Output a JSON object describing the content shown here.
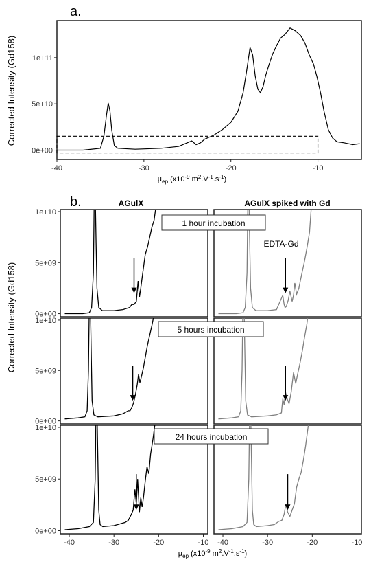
{
  "chart_data": [
    {
      "type": "line",
      "panel_label": "a.",
      "ylabel": "Corrected Intensity (Gd158)",
      "xlabel": {
        "main": "µ",
        "sub": "ep",
        "rest1": " (x10",
        "sup1": "-9",
        "rest2": " m",
        "sup2": "2",
        "rest3": ".V",
        "sup3": "-1",
        "rest4": ".s",
        "sup4": "-1",
        "rest5": ")"
      },
      "xlim": [
        -40,
        -5
      ],
      "ylim": [
        -10000000000.0,
        140000000000.0
      ],
      "xticks": [
        -40,
        -30,
        -20,
        -10
      ],
      "xtick_labels": [
        "-40",
        "-30",
        "-20",
        "-10"
      ],
      "yticks": [
        0,
        50000000000.0,
        100000000000.0
      ],
      "ytick_labels": [
        "0e+00",
        "5e+10",
        "1e+11"
      ],
      "series": [
        {
          "color": "#000000",
          "x": [
            -40,
            -37,
            -35,
            -34.6,
            -34.3,
            -34.1,
            -33.9,
            -33.7,
            -33.4,
            -33,
            -31,
            -28,
            -26,
            -24.5,
            -24,
            -23.5,
            -23,
            -22,
            -21,
            -20,
            -19.2,
            -18.6,
            -18.2,
            -17.8,
            -17.5,
            -17.2,
            -16.9,
            -16.6,
            -16.3,
            -16,
            -15.6,
            -15.2,
            -14.8,
            -14.3,
            -13.8,
            -13.2,
            -12.6,
            -12,
            -11.5,
            -11,
            -10.5,
            -10.1,
            -9.7,
            -9.3,
            -8.8,
            -8.3,
            -7.8,
            -7,
            -6,
            -5.2
          ],
          "y": [
            0,
            0,
            2000000000.0,
            15000000000.0,
            38000000000.0,
            51000000000.0,
            42000000000.0,
            22000000000.0,
            5000000000.0,
            2000000000.0,
            1000000000.0,
            2000000000.0,
            4000000000.0,
            10000000000.0,
            6000000000.0,
            8000000000.0,
            12000000000.0,
            16000000000.0,
            22000000000.0,
            30000000000.0,
            42000000000.0,
            62000000000.0,
            85000000000.0,
            111000000000.0,
            103000000000.0,
            80000000000.0,
            66000000000.0,
            62000000000.0,
            69000000000.0,
            81000000000.0,
            93000000000.0,
            104000000000.0,
            112000000000.0,
            121000000000.0,
            125000000000.0,
            132000000000.0,
            129000000000.0,
            124000000000.0,
            116000000000.0,
            103000000000.0,
            93000000000.0,
            79000000000.0,
            62000000000.0,
            42000000000.0,
            22000000000.0,
            13000000000.0,
            9000000000.0,
            8000000000.0,
            6000000000.0,
            7000000000.0
          ]
        }
      ],
      "roi_box": {
        "x": [
          -40,
          -10
        ],
        "y": [
          -3000000000.0,
          15000000000.0
        ]
      }
    },
    {
      "type": "line",
      "panel_label": "b.",
      "ylabel": "Corrected Intensity (Gd158)",
      "xlabel": {
        "main": "µ",
        "sub": "ep",
        "rest1": " (x10",
        "sup1": "-9",
        "rest2": " m",
        "sup2": "2",
        "rest3": ".V",
        "sup3": "-1",
        "rest4": ".s",
        "sup4": "-1",
        "rest5": ")"
      },
      "xlim": [
        -42,
        -9
      ],
      "ylim": [
        -300000000.0,
        10200000000.0
      ],
      "xticks": [
        -40,
        -30,
        -20,
        -10
      ],
      "xtick_labels": [
        "-40",
        "-30",
        "-20",
        "-10"
      ],
      "yticks": [
        0,
        5000000000.0,
        10000000000.0
      ],
      "ytick_labels": [
        "0e+00",
        "5e+09",
        "1e+10"
      ],
      "column_titles": [
        "AGulX",
        "AGulX spiked with Gd"
      ],
      "row_labels": [
        "1 hour incubation",
        "5 hours incubation",
        "24 hours incubation"
      ],
      "annotation_text": "EDTA-Gd",
      "colors": [
        "#000000",
        "#7f7f7f"
      ],
      "panels": [
        [
          {
            "peak_x": -34.2,
            "arrow_x": -25.5,
            "x": [
              -41,
              -37,
              -35.5,
              -35,
              -34.6,
              -34.4,
              -34.2,
              -34,
              -33.8,
              -33.4,
              -32.6,
              -30,
              -28,
              -26.5,
              -26,
              -25.5,
              -25,
              -24.6,
              -24.3,
              -24,
              -23.7,
              -23.3,
              -23,
              -22.5,
              -22,
              -21.5,
              -21,
              -20.6,
              -20.2
            ],
            "y": [
              0,
              0,
              100000000.0,
              600000000.0,
              4000000000.0,
              12000000000.0,
              12000000000.0,
              7000000000.0,
              2500000000.0,
              600000000.0,
              300000000.0,
              300000000.0,
              400000000.0,
              600000000.0,
              900000000.0,
              900000000.0,
              1200000000.0,
              3200000000.0,
              1600000000.0,
              2500000000.0,
              3500000000.0,
              4800000000.0,
              5800000000.0,
              6500000000.0,
              7500000000.0,
              8500000000.0,
              9200000000.0,
              10500000000.0,
              12000000000.0
            ]
          },
          {
            "peak_x": -34.2,
            "arrow_x": -26,
            "x": [
              -41,
              -37,
              -35.5,
              -35,
              -34.6,
              -34.4,
              -34.2,
              -34,
              -33.8,
              -33.4,
              -32.6,
              -30,
              -28,
              -26.6,
              -26.3,
              -26.1,
              -25.8,
              -25.4,
              -25,
              -24.5,
              -24.2,
              -23.9,
              -23.5,
              -23,
              -22.4,
              -21.8,
              -21.2,
              -20.6,
              -20.2
            ],
            "y": [
              0,
              0,
              100000000.0,
              600000000.0,
              4000000000.0,
              12000000000.0,
              12000000000.0,
              7000000000.0,
              2500000000.0,
              600000000.0,
              300000000.0,
              300000000.0,
              400000000.0,
              1800000000.0,
              900000000.0,
              600000000.0,
              700000000.0,
              1300000000.0,
              2200000000.0,
              1200000000.0,
              1800000000.0,
              3000000000.0,
              1900000000.0,
              2500000000.0,
              3800000000.0,
              5000000000.0,
              6400000000.0,
              8000000000.0,
              10500000000.0
            ]
          }
        ],
        [
          {
            "peak_x": -35.3,
            "arrow_x": -25.8,
            "x": [
              -41,
              -38,
              -36.5,
              -36,
              -35.7,
              -35.5,
              -35.3,
              -35.1,
              -34.9,
              -34.5,
              -33.6,
              -30,
              -28,
              -26.8,
              -26.4,
              -26,
              -25.6,
              -25.2,
              -24.8,
              -24.5,
              -24.2,
              -23.8,
              -23.4,
              -23,
              -22.5,
              -22,
              -21.5,
              -21,
              -20.6
            ],
            "y": [
              200000000.0,
              300000000.0,
              400000000.0,
              1000000000.0,
              5000000000.0,
              12000000000.0,
              12000000000.0,
              7000000000.0,
              2000000000.0,
              600000000.0,
              400000000.0,
              500000000.0,
              700000000.0,
              1000000000.0,
              1000000000.0,
              1300000000.0,
              1800000000.0,
              2600000000.0,
              3600000000.0,
              4600000000.0,
              3800000000.0,
              4500000000.0,
              5300000000.0,
              6300000000.0,
              7500000000.0,
              8500000000.0,
              9500000000.0,
              10600000000.0,
              12000000000.0
            ]
          },
          {
            "peak_x": -35.3,
            "arrow_x": -26,
            "x": [
              -41,
              -38,
              -36.5,
              -36,
              -35.7,
              -35.5,
              -35.3,
              -35.1,
              -34.9,
              -34.5,
              -33.6,
              -30,
              -28,
              -26.9,
              -26.6,
              -26.3,
              -26,
              -25.6,
              -25.2,
              -24.7,
              -24.2,
              -23.7,
              -23.2,
              -22.7,
              -22.2,
              -21.7,
              -21.2,
              -20.7
            ],
            "y": [
              200000000.0,
              300000000.0,
              400000000.0,
              1000000000.0,
              5000000000.0,
              12000000000.0,
              12000000000.0,
              7000000000.0,
              2000000000.0,
              600000000.0,
              400000000.0,
              500000000.0,
              600000000.0,
              800000000.0,
              2200000000.0,
              1600000000.0,
              2900000000.0,
              2200000000.0,
              1700000000.0,
              2900000000.0,
              4800000000.0,
              3700000000.0,
              4800000000.0,
              5800000000.0,
              7000000000.0,
              8400000000.0,
              9600000000.0,
              11500000000.0
            ]
          }
        ],
        [
          {
            "peak_x": -33.7,
            "arrow_x": -25,
            "x": [
              -41,
              -38,
              -35.5,
              -34.6,
              -34.2,
              -34,
              -33.8,
              -33.6,
              -33.4,
              -33.1,
              -32.5,
              -30,
              -27.5,
              -26.8,
              -26.2,
              -25.7,
              -25.3,
              -25,
              -24.7,
              -24.3,
              -24,
              -23.7,
              -23.4,
              -23,
              -22.6,
              -22.2,
              -21.8,
              -21.3,
              -20.8,
              -20.3
            ],
            "y": [
              100000000.0,
              200000000.0,
              400000000.0,
              800000000.0,
              5000000000.0,
              12000000000.0,
              12000000000.0,
              7000000000.0,
              2000000000.0,
              600000000.0,
              400000000.0,
              500000000.0,
              800000000.0,
              1000000000.0,
              1500000000.0,
              2000000000.0,
              4000000000.0,
              2600000000.0,
              5000000000.0,
              1800000000.0,
              3200000000.0,
              2300000000.0,
              3200000000.0,
              4800000000.0,
              6200000000.0,
              5500000000.0,
              7400000000.0,
              8800000000.0,
              10400000000.0,
              12000000000.0
            ]
          },
          {
            "peak_x": -33.7,
            "arrow_x": -25.5,
            "x": [
              -41,
              -38,
              -35.5,
              -34.6,
              -34.2,
              -34,
              -33.8,
              -33.6,
              -33.4,
              -33.1,
              -32.5,
              -30,
              -28.5,
              -27.5,
              -26.8,
              -26.3,
              -25.9,
              -25.5,
              -25,
              -24.5,
              -24,
              -23.5,
              -23,
              -22.5,
              -22,
              -21.5,
              -21,
              -20.5
            ],
            "y": [
              100000000.0,
              200000000.0,
              400000000.0,
              800000000.0,
              5000000000.0,
              12000000000.0,
              12000000000.0,
              7000000000.0,
              2000000000.0,
              600000000.0,
              400000000.0,
              500000000.0,
              600000000.0,
              900000000.0,
              1000000000.0,
              1600000000.0,
              2600000000.0,
              1800000000.0,
              1400000000.0,
              2000000000.0,
              2600000000.0,
              4200000000.0,
              5000000000.0,
              5600000000.0,
              6800000000.0,
              8200000000.0,
              9800000000.0,
              11500000000.0
            ]
          }
        ]
      ]
    }
  ]
}
